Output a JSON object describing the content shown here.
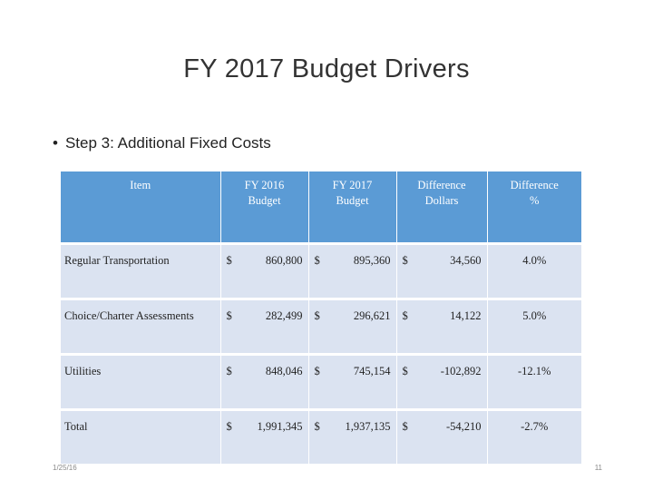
{
  "slide": {
    "title": "FY 2017 Budget Drivers",
    "bullet": "Step 3: Additional Fixed Costs",
    "footer_date": "1/25/16",
    "page_number": "11"
  },
  "table": {
    "headers": [
      "Item",
      "FY 2016\nBudget",
      "FY 2017\nBudget",
      "Difference\nDollars",
      "Difference\n%"
    ],
    "rows": [
      {
        "item": "Regular Transportation",
        "fy2016": "860,800",
        "fy2017": "895,360",
        "diff_dollars": "34,560",
        "diff_pct": "4.0%"
      },
      {
        "item": "Choice/Charter Assessments",
        "fy2016": "282,499",
        "fy2017": "296,621",
        "diff_dollars": "14,122",
        "diff_pct": "5.0%"
      },
      {
        "item": "Utilities",
        "fy2016": "848,046",
        "fy2017": "745,154",
        "diff_dollars": "-102,892",
        "diff_pct": "-12.1%"
      },
      {
        "item": "Total",
        "fy2016": "1,991,345",
        "fy2017": "1,937,135",
        "diff_dollars": "-54,210",
        "diff_pct": "-2.7%"
      }
    ],
    "currency_symbol": "$",
    "colors": {
      "header": "#5b9bd5",
      "row": "#dbe3f1"
    }
  }
}
